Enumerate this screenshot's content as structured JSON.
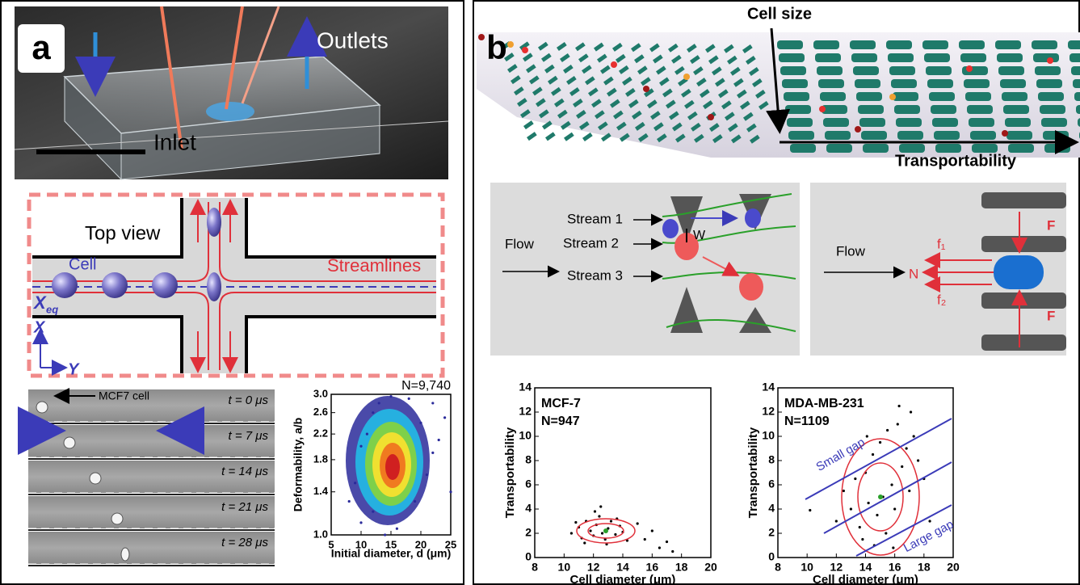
{
  "panel_a": {
    "label": "a",
    "photo": {
      "outlets": "Outlets",
      "inlet": "Inlet"
    },
    "top_view": {
      "title": "Top view",
      "cell": "Cell",
      "streamlines": "Streamlines",
      "x_eq": {
        "main": "X",
        "sub": "eq"
      },
      "x_axis": "X",
      "y_axis": "Y"
    },
    "microscopy": {
      "annotation": "MCF7 cell",
      "frames": [
        "t = 0 μs",
        "t = 7 μs",
        "t = 14 μs",
        "t = 21 μs",
        "t = 28 μs"
      ]
    },
    "density_plot": {
      "type": "scatter",
      "title": "N=9,740",
      "xlabel": "Initial diameter, d (μm)",
      "ylabel": "Deformability, a/b",
      "xlim": [
        5,
        25
      ],
      "xticks": [
        5,
        10,
        15,
        20,
        25
      ],
      "ylim": [
        1,
        3
      ],
      "yscale": "log",
      "yticks": [
        {
          "value": 1,
          "label": "1.0"
        },
        1.4,
        1.8,
        2.2,
        2.6,
        {
          "value": 3,
          "label": "3.0"
        }
      ],
      "color": "#2a2a9a",
      "x": [
        8,
        9,
        10,
        11,
        12,
        12,
        13,
        14,
        18,
        19,
        20,
        21,
        22,
        23,
        24,
        25,
        10,
        22,
        16,
        15
      ],
      "y": [
        1.3,
        1.5,
        1.1,
        2.2,
        2.6,
        1.2,
        2.8,
        1.0,
        2.9,
        1.3,
        2.4,
        1.6,
        1.9,
        2.1,
        2.5,
        1.4,
        2.0,
        2.8,
        1.05,
        2.95
      ]
    }
  },
  "panel_b": {
    "label": "b",
    "render": {
      "cell_size": "Cell size",
      "transportability": "Transportability"
    },
    "schematic_1": {
      "flow": "Flow",
      "stream_1": "Stream 1",
      "stream_2": "Stream 2",
      "stream_3": "Stream 3",
      "w": "W"
    },
    "schematic_2": {
      "flow": "Flow",
      "n": "N",
      "f1": "f₁",
      "f2": "f₂",
      "f_top": "F",
      "f_bottom": "F"
    },
    "plots": [
      {
        "type": "scatter",
        "title": "MCF-7",
        "subtitle": "N=947",
        "xlabel": "Cell diameter (μm)",
        "ylabel": "Transportability",
        "xlim": [
          8,
          20
        ],
        "xticks": [
          8,
          10,
          12,
          14,
          16,
          18,
          20
        ],
        "ylim": [
          0,
          14
        ],
        "yticks": [
          0,
          2,
          4,
          6,
          8,
          10,
          12,
          14
        ],
        "color": "#000000",
        "x": [
          10.5,
          11,
          11.2,
          11.5,
          11.8,
          12,
          12.2,
          12.4,
          12.6,
          12.8,
          13,
          13.2,
          13.5,
          13.8,
          14,
          14.3,
          11.4,
          12.1,
          12.9,
          13.6,
          15,
          15.5,
          16,
          16.5,
          17,
          17.4,
          10.8,
          12.5
        ],
        "y": [
          2.0,
          2.5,
          1.6,
          3.0,
          2.2,
          1.8,
          2.7,
          3.4,
          2.0,
          1.5,
          2.4,
          3.0,
          1.9,
          2.6,
          2.1,
          1.4,
          1.2,
          3.8,
          1.1,
          3.2,
          2.8,
          1.5,
          2.2,
          0.8,
          1.3,
          0.5,
          2.9,
          4.2
        ]
      },
      {
        "type": "scatter",
        "title": "MDA-MB-231",
        "subtitle": "N=1109",
        "xlabel": "Cell diameter (μm)",
        "ylabel": "Transportability",
        "annotations": [
          "Small gap",
          "Large gap"
        ],
        "xlim": [
          8,
          20
        ],
        "xticks": [
          8,
          10,
          12,
          14,
          16,
          18,
          20
        ],
        "ylim": [
          0,
          14
        ],
        "yticks": [
          0,
          2,
          4,
          6,
          8,
          10,
          12,
          14
        ],
        "color": "#000000",
        "x": [
          10.2,
          12,
          12.5,
          13,
          13.3,
          13.6,
          14,
          14.2,
          14.5,
          14.8,
          15,
          15.2,
          15.5,
          15.8,
          16,
          16.2,
          16.5,
          16.8,
          17,
          17.3,
          17.6,
          18,
          13.8,
          14.6,
          15.4,
          16.3,
          17.1,
          15.9,
          14.1,
          18.4
        ],
        "y": [
          3.9,
          3.0,
          5.5,
          4.0,
          6.5,
          2.5,
          7.0,
          4.5,
          8.5,
          3.5,
          9.5,
          5.0,
          10.5,
          6.0,
          4.0,
          11.0,
          7.5,
          9.0,
          5.5,
          10.0,
          8.0,
          6.5,
          1.5,
          1.0,
          2.0,
          12.5,
          12.0,
          0.8,
          10.0,
          3.0
        ]
      }
    ]
  }
}
